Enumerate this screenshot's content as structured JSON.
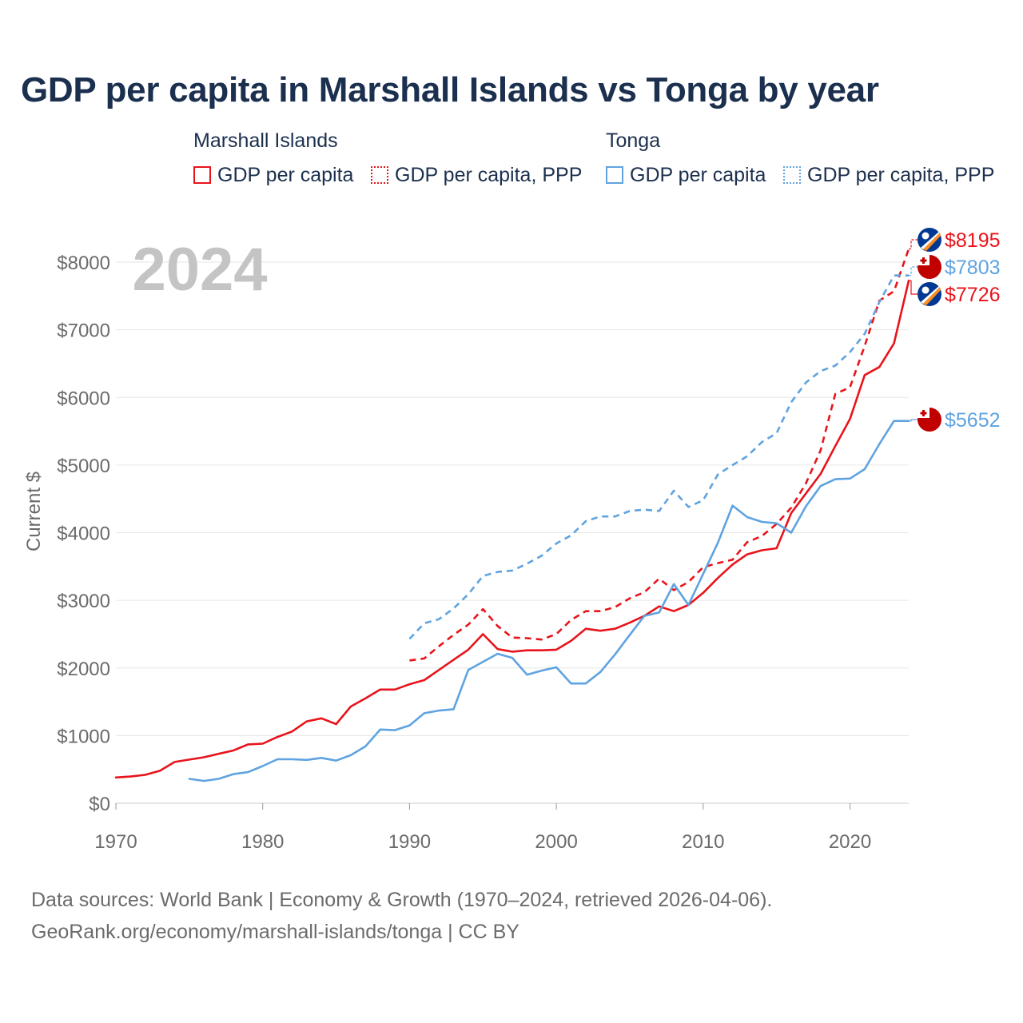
{
  "title": "GDP per capita in Marshall Islands vs Tonga by year",
  "legend": {
    "groups": [
      {
        "name": "Marshall Islands",
        "items": [
          {
            "label": "GDP per capita",
            "style": "solid",
            "color": "#e8141b"
          },
          {
            "label": "GDP per capita, PPP",
            "style": "dotted",
            "color": "#e8141b"
          }
        ]
      },
      {
        "name": "Tonga",
        "items": [
          {
            "label": "GDP per capita",
            "style": "solid",
            "color": "#5fa3e0"
          },
          {
            "label": "GDP per capita, PPP",
            "style": "dotted",
            "color": "#5fa3e0"
          }
        ]
      }
    ]
  },
  "year_label": "2024",
  "sources": {
    "line1": "Data sources: World Bank | Economy & Growth (1970–2024, retrieved 2026-04-06).",
    "line2": "GeoRank.org/economy/marshall-islands/tonga | CC BY"
  },
  "chart_data": {
    "type": "line",
    "title": "GDP per capita in Marshall Islands vs Tonga by year",
    "xlabel": "",
    "ylabel": "Current $",
    "xlim": [
      1970,
      2024
    ],
    "ylim": [
      0,
      8000
    ],
    "x_ticks": [
      1970,
      1980,
      1990,
      2000,
      2010,
      2020
    ],
    "x_tick_labels": [
      "1970",
      "1980",
      "1990",
      "2000",
      "2010",
      "2020"
    ],
    "y_ticks": [
      0,
      1000,
      2000,
      3000,
      4000,
      5000,
      6000,
      7000,
      8000
    ],
    "y_tick_labels": [
      "$0",
      "$1000",
      "$2000",
      "$3000",
      "$4000",
      "$5000",
      "$6000",
      "$7000",
      "$8000"
    ],
    "grid": true,
    "series": [
      {
        "name": "Marshall Islands – GDP per capita",
        "country": "Marshall Islands",
        "style": "solid",
        "color": "#e8141b",
        "start_year": 1970,
        "values": [
          380,
          395,
          420,
          480,
          610,
          645,
          680,
          730,
          780,
          870,
          880,
          980,
          1060,
          1210,
          1255,
          1170,
          1430,
          1550,
          1680,
          1680,
          1760,
          1820,
          1970,
          2120,
          2270,
          2500,
          2280,
          2240,
          2260,
          2260,
          2270,
          2400,
          2580,
          2550,
          2580,
          2670,
          2770,
          2910,
          2840,
          2930,
          3110,
          3330,
          3530,
          3680,
          3740,
          3770,
          4290,
          4580,
          4870,
          5280,
          5680,
          6330,
          6450,
          6800,
          7726
        ],
        "end_label": "$7726"
      },
      {
        "name": "Marshall Islands – GDP per capita, PPP",
        "country": "Marshall Islands",
        "style": "dashed",
        "color": "#e8141b",
        "start_year": 1990,
        "values": [
          2110,
          2140,
          2320,
          2490,
          2640,
          2870,
          2620,
          2450,
          2440,
          2420,
          2500,
          2710,
          2840,
          2840,
          2900,
          3030,
          3120,
          3320,
          3150,
          3270,
          3490,
          3550,
          3600,
          3860,
          3950,
          4130,
          4370,
          4730,
          5220,
          6050,
          6150,
          6760,
          7430,
          7570,
          8195
        ],
        "end_label": "$8195"
      },
      {
        "name": "Tonga – GDP per capita",
        "country": "Tonga",
        "style": "solid",
        "color": "#5fa3e0",
        "start_year": 1975,
        "values": [
          360,
          330,
          360,
          430,
          460,
          550,
          650,
          650,
          640,
          670,
          630,
          710,
          840,
          1090,
          1080,
          1150,
          1330,
          1370,
          1390,
          1970,
          2090,
          2210,
          2150,
          1900,
          1960,
          2010,
          1770,
          1770,
          1940,
          2200,
          2490,
          2770,
          2820,
          3240,
          2930,
          3390,
          3850,
          4400,
          4230,
          4160,
          4140,
          4000,
          4390,
          4690,
          4790,
          4800,
          4940,
          5310,
          5652,
          5652
        ],
        "end_label": "$5652"
      },
      {
        "name": "Tonga – GDP per capita, PPP",
        "country": "Tonga",
        "style": "dashed",
        "color": "#5fa3e0",
        "start_year": 1990,
        "values": [
          2430,
          2660,
          2720,
          2880,
          3090,
          3360,
          3420,
          3440,
          3540,
          3660,
          3840,
          3960,
          4170,
          4240,
          4240,
          4320,
          4340,
          4320,
          4620,
          4380,
          4480,
          4860,
          5000,
          5130,
          5340,
          5470,
          5930,
          6220,
          6390,
          6470,
          6670,
          6940,
          7410,
          7803,
          7803
        ],
        "end_label": "$7803"
      }
    ],
    "end_labels": [
      {
        "series": 1,
        "text": "$8195",
        "flag": "marshall-islands"
      },
      {
        "series": 3,
        "text": "$7803",
        "flag": "tonga"
      },
      {
        "series": 0,
        "text": "$7726",
        "flag": "marshall-islands"
      },
      {
        "series": 2,
        "text": "$5652",
        "flag": "tonga"
      }
    ]
  }
}
